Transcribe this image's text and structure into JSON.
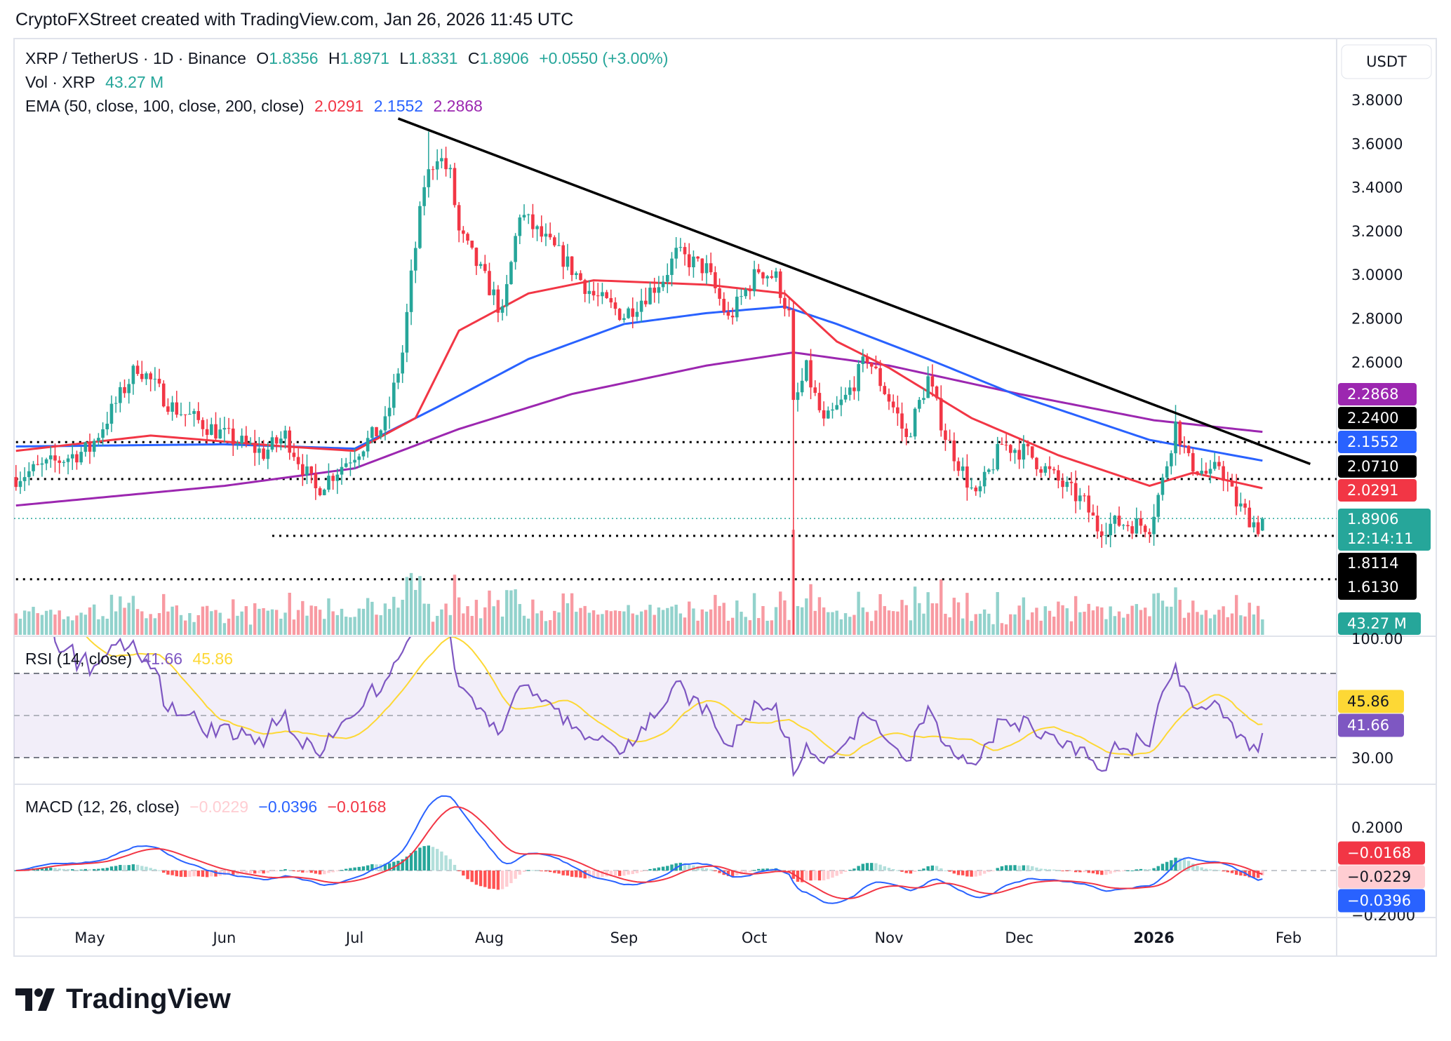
{
  "header": {
    "attribution": "CryptoFXStreet created with TradingView.com, Jan 26, 2026 11:45 UTC"
  },
  "legend": {
    "symbol": "XRP / TetherUS · 1D · Binance",
    "o_label": "O",
    "open": "1.8356",
    "h_label": "H",
    "high": "1.8971",
    "l_label": "L",
    "low": "1.8331",
    "c_label": "C",
    "close": "1.8906",
    "change": "+0.0550 (+3.00%)",
    "vol_label": "Vol · XRP",
    "vol": "43.27 M",
    "ema_label": "EMA (50, close, 100, close, 200, close)",
    "ema50": "2.0291",
    "ema100": "2.1552",
    "ema200": "2.2868"
  },
  "rsi": {
    "label": "RSI (14, close)",
    "value": "41.66",
    "ma": "45.86",
    "ticks": [
      "100.00",
      "30.00"
    ]
  },
  "macd": {
    "label": "MACD (12, 26, close)",
    "hist": "−0.0229",
    "macd": "−0.0396",
    "signal": "−0.0168",
    "ticks": [
      "0.2000",
      "−0.2000"
    ]
  },
  "price_axis": {
    "currency": "USDT",
    "ticks": [
      "3.8000",
      "3.6000",
      "3.4000",
      "3.2000",
      "3.0000",
      "2.8000",
      "2.6000"
    ],
    "levels": {
      "l1": "2.2400",
      "l2": "2.0710",
      "l3": "1.8114",
      "l4": "1.6130"
    },
    "last_price": "1.8906",
    "countdown": "12:14:11",
    "volume": "43.27 M"
  },
  "time_axis": [
    "May",
    "Jun",
    "Jul",
    "Aug",
    "Sep",
    "Oct",
    "Nov",
    "Dec",
    "2026",
    "Feb"
  ],
  "footer": {
    "logo": "TradingView"
  },
  "colors": {
    "up": "#26a69a",
    "down": "#f23645",
    "ema50": "#f23645",
    "ema100": "#2962ff",
    "ema200": "#9c27b0",
    "rsi": "#7e57c2",
    "rsi_ma": "#fdd835",
    "macd": "#2962ff",
    "signal": "#f23645"
  },
  "chart_data": {
    "type": "candlestick",
    "symbol": "XRP/USDT",
    "timeframe": "1D",
    "ylim": [
      1.3,
      3.85
    ],
    "last_candle": {
      "date": "2026-01-26",
      "open": 1.8356,
      "high": 1.8971,
      "low": 1.8331,
      "close": 1.8906,
      "volume_m": 43.27
    },
    "approx_closes": [
      [
        "2025-04-14",
        2.08
      ],
      [
        "2025-05-01",
        2.21
      ],
      [
        "2025-05-12",
        2.59
      ],
      [
        "2025-05-20",
        2.4
      ],
      [
        "2025-06-01",
        2.27
      ],
      [
        "2025-06-10",
        2.19
      ],
      [
        "2025-06-15",
        2.27
      ],
      [
        "2025-06-22",
        2.02
      ],
      [
        "2025-07-01",
        2.19
      ],
      [
        "2025-07-08",
        2.32
      ],
      [
        "2025-07-12",
        2.65
      ],
      [
        "2025-07-14",
        2.99
      ],
      [
        "2025-07-17",
        3.42
      ],
      [
        "2025-07-20",
        3.56
      ],
      [
        "2025-07-23",
        3.46
      ],
      [
        "2025-07-25",
        3.2
      ],
      [
        "2025-08-02",
        2.91
      ],
      [
        "2025-08-04",
        2.82
      ],
      [
        "2025-08-08",
        3.29
      ],
      [
        "2025-08-12",
        3.2
      ],
      [
        "2025-08-18",
        3.08
      ],
      [
        "2025-08-25",
        2.91
      ],
      [
        "2025-09-01",
        2.82
      ],
      [
        "2025-09-10",
        2.99
      ],
      [
        "2025-09-13",
        3.1
      ],
      [
        "2025-09-20",
        3.03
      ],
      [
        "2025-09-25",
        2.8
      ],
      [
        "2025-10-02",
        3.03
      ],
      [
        "2025-10-06",
        2.99
      ],
      [
        "2025-10-09",
        2.82
      ],
      [
        "2025-10-10",
        2.4
      ],
      [
        "2025-10-13",
        2.57
      ],
      [
        "2025-10-17",
        2.32
      ],
      [
        "2025-10-22",
        2.44
      ],
      [
        "2025-10-27",
        2.63
      ],
      [
        "2025-11-03",
        2.36
      ],
      [
        "2025-11-05",
        2.25
      ],
      [
        "2025-11-10",
        2.53
      ],
      [
        "2025-11-14",
        2.27
      ],
      [
        "2025-11-21",
        1.98
      ],
      [
        "2025-11-24",
        2.1
      ],
      [
        "2025-11-27",
        2.23
      ],
      [
        "2025-12-03",
        2.19
      ],
      [
        "2025-12-10",
        2.06
      ],
      [
        "2025-12-16",
        1.96
      ],
      [
        "2025-12-19",
        1.85
      ],
      [
        "2025-12-24",
        1.87
      ],
      [
        "2025-12-31",
        1.86
      ],
      [
        "2026-01-03",
        2.06
      ],
      [
        "2026-01-06",
        2.32
      ],
      [
        "2026-01-09",
        2.15
      ],
      [
        "2026-01-14",
        2.08
      ],
      [
        "2026-01-16",
        2.14
      ],
      [
        "2026-01-20",
        1.96
      ],
      [
        "2026-01-25",
        1.85
      ],
      [
        "2026-01-26",
        1.8906
      ]
    ],
    "notable_wicks": [
      [
        "2025-10-10",
        1.36
      ],
      [
        "2025-07-18",
        3.66
      ],
      [
        "2026-01-06",
        2.41
      ]
    ],
    "ema50": [
      [
        "2025-04-14",
        2.2
      ],
      [
        "2025-05-15",
        2.27
      ],
      [
        "2025-06-15",
        2.22
      ],
      [
        "2025-07-01",
        2.2
      ],
      [
        "2025-07-15",
        2.35
      ],
      [
        "2025-07-25",
        2.75
      ],
      [
        "2025-08-10",
        2.92
      ],
      [
        "2025-08-25",
        2.98
      ],
      [
        "2025-09-20",
        2.96
      ],
      [
        "2025-10-08",
        2.92
      ],
      [
        "2025-10-20",
        2.7
      ],
      [
        "2025-11-01",
        2.58
      ],
      [
        "2025-11-20",
        2.35
      ],
      [
        "2025-12-10",
        2.18
      ],
      [
        "2025-12-31",
        2.04
      ],
      [
        "2026-01-10",
        2.1
      ],
      [
        "2026-01-26",
        2.0291
      ]
    ],
    "ema100": [
      [
        "2025-04-14",
        2.22
      ],
      [
        "2025-06-01",
        2.23
      ],
      [
        "2025-07-01",
        2.21
      ],
      [
        "2025-07-20",
        2.4
      ],
      [
        "2025-08-10",
        2.62
      ],
      [
        "2025-09-01",
        2.78
      ],
      [
        "2025-09-20",
        2.83
      ],
      [
        "2025-10-08",
        2.86
      ],
      [
        "2025-10-20",
        2.78
      ],
      [
        "2025-11-10",
        2.62
      ],
      [
        "2025-12-01",
        2.45
      ],
      [
        "2025-12-31",
        2.25
      ],
      [
        "2026-01-26",
        2.1552
      ]
    ],
    "ema200": [
      [
        "2025-04-14",
        1.95
      ],
      [
        "2025-06-01",
        2.04
      ],
      [
        "2025-07-01",
        2.12
      ],
      [
        "2025-07-25",
        2.3
      ],
      [
        "2025-08-20",
        2.46
      ],
      [
        "2025-09-20",
        2.59
      ],
      [
        "2025-10-10",
        2.65
      ],
      [
        "2025-11-01",
        2.59
      ],
      [
        "2025-12-01",
        2.46
      ],
      [
        "2026-01-01",
        2.34
      ],
      [
        "2026-01-26",
        2.2868
      ]
    ],
    "trendline": [
      [
        "2025-07-11",
        3.72
      ],
      [
        "2026-02-06",
        2.14
      ]
    ],
    "horizontal_levels": [
      {
        "price": 2.24,
        "from": "2025-04-14"
      },
      {
        "price": 2.071,
        "from": "2025-04-14"
      },
      {
        "price": 1.8114,
        "from": "2025-06-12"
      },
      {
        "price": 1.613,
        "from": "2025-04-14"
      }
    ],
    "rsi": {
      "period": 14,
      "levels": [
        70,
        50,
        30
      ],
      "last": 41.66,
      "ma_last": 45.86
    },
    "macd": {
      "fast": 12,
      "slow": 26,
      "last_macd": -0.0396,
      "last_signal": -0.0168,
      "last_hist": -0.0229
    }
  }
}
